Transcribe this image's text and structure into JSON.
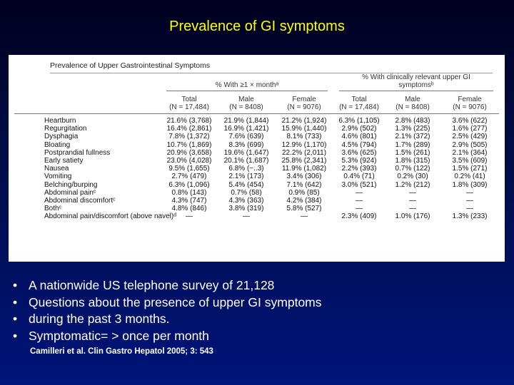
{
  "slide": {
    "title": "Prevalence of GI symptoms",
    "colors": {
      "title": "#ffff00",
      "text": "#ffffff",
      "background": "#00147a"
    }
  },
  "figure": {
    "caption": "Prevalence of Upper Gastrointestinal Symptoms",
    "group_left": "% With ≥1 × monthᵃ",
    "group_right_line1": "% With clinically relevant upper GI",
    "group_right_line2": "symptomsᵇ",
    "columns": [
      {
        "label": "Total",
        "n": "(N = 17,484)"
      },
      {
        "label": "Male",
        "n": "(N = 8408)"
      },
      {
        "label": "Female",
        "n": "(N = 9076)"
      },
      {
        "label": "Total",
        "n": "(N = 17,484)"
      },
      {
        "label": "Male",
        "n": "(N = 8408)"
      },
      {
        "label": "Female",
        "n": "(N = 9076)"
      }
    ],
    "rows": [
      {
        "name": "Heartburn",
        "values": [
          "21.6% (3,768)",
          "21.9% (1,844)",
          "21.2% (1,924)",
          "6.3% (1,105)",
          "2.8% (483)",
          "3.6% (622)"
        ]
      },
      {
        "name": "Regurgitation",
        "values": [
          "16.4% (2,861)",
          "16.9% (1,421)",
          "15.9% (1,440)",
          "2.9% (502)",
          "1.3% (225)",
          "1.6% (277)"
        ]
      },
      {
        "name": "Dysphagia",
        "values": [
          "7.8% (1,372)",
          "7.6% (639)",
          "8.1% (733)",
          "4.6% (801)",
          "2.1% (372)",
          "2.5% (429)"
        ]
      },
      {
        "name": "Bloating",
        "values": [
          "10.7% (1,869)",
          "8.3% (699)",
          "12.9% (1,170)",
          "4.5% (794)",
          "1.7% (289)",
          "2.9% (505)"
        ]
      },
      {
        "name": "Postprandial fullness",
        "values": [
          "20.9% (3,658)",
          "19.6% (1,647)",
          "22.2% (2,011)",
          "3.6% (625)",
          "1.5% (261)",
          "2.1% (364)"
        ]
      },
      {
        "name": "Early satiety",
        "values": [
          "23.0% (4,028)",
          "20.1% (1,687)",
          "25.8% (2,341)",
          "5.3% (924)",
          "1.8% (315)",
          "3.5% (609)"
        ]
      },
      {
        "name": "Nausea",
        "values": [
          "9.5% (1,655)",
          "6.8% (−..3)",
          "11.9% (1,082)",
          "2.2% (393)",
          "0.7% (122)",
          "1.5% (271)"
        ]
      },
      {
        "name": "Vomiting",
        "values": [
          "2.7% (479)",
          "2.1% (173)",
          "3.4% (306)",
          "0.4% (71)",
          "0.2% (30)",
          "0.2% (41)"
        ]
      },
      {
        "name": "Belching/burping",
        "values": [
          "6.3% (1,096)",
          "5.4% (454)",
          "7.1% (642)",
          "3.0% (521)",
          "1.2% (212)",
          "1.8% (309)"
        ]
      },
      {
        "name": "Abdominal painᶜ",
        "values": [
          "0.8% (143)",
          "0.7% (58)",
          "0.9% (85)",
          "—",
          "—",
          "—"
        ]
      },
      {
        "name": "Abdominal discomfortᶜ",
        "values": [
          "4.3% (747)",
          "4.3% (363)",
          "4.2% (384)",
          "—",
          "—",
          "—"
        ]
      },
      {
        "name": "Bothᶜ",
        "values": [
          "4.8% (846)",
          "3.8% (319)",
          "5.8% (527)",
          "—",
          "—",
          "—"
        ]
      },
      {
        "name": "Abdominal pain/discomfort (above navel)ᵈ",
        "values": [
          "—",
          "—",
          "—",
          "2.3% (409)",
          "1.0% (176)",
          "1.3% (233)"
        ]
      }
    ]
  },
  "bullets": [
    "A nationwide US telephone survey of 21,128",
    "Questions about the presence of upper GI symptoms",
    "during the past 3 months.",
    "Symptomatic= > once per month"
  ],
  "bullet_symbol": "•",
  "citation": "Camilleri et al. Clin Gastro Hepatol 2005; 3: 543"
}
